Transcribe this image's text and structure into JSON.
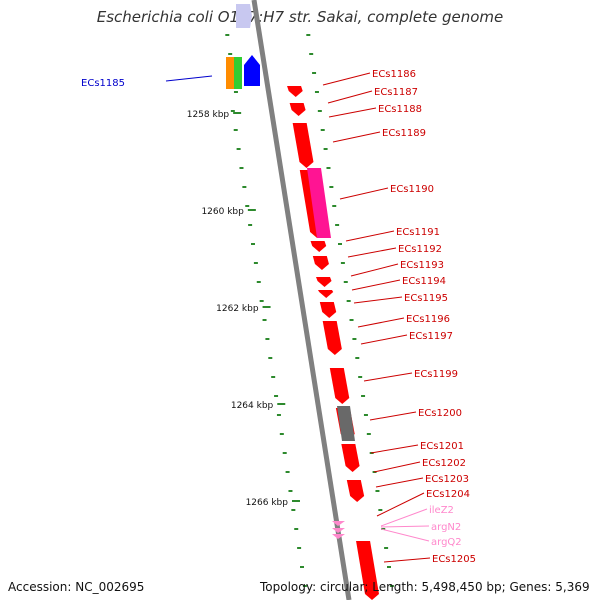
{
  "title": "Escherichia coli O157:H7 str. Sakai, complete genome",
  "footer": {
    "accession": "Accession: NC_002695",
    "summary": "Topology: circular; Length: 5,498,450 bp; Genes: 5,369"
  },
  "ticks": [
    "1258 kbp",
    "1260 kbp",
    "1262 kbp",
    "1264 kbp",
    "1266 kbp"
  ],
  "colors": {
    "backbone": "#808080",
    "cds": "#ff0000",
    "cds_label": "#cc0000",
    "highlight": "#ff1493",
    "gray_feature": "#696969",
    "trna": "#ff88cc",
    "scale_dash": "#2d8a2d",
    "left_label": "#0000cc",
    "orange": "#ff8c00",
    "green": "#32cd32",
    "blue": "#0000ff",
    "lavender": "#c8c8f0"
  },
  "labels": [
    {
      "name": "ECs1185",
      "type": "left",
      "color": "#0000cc"
    },
    {
      "name": "ECs1186",
      "type": "cds"
    },
    {
      "name": "ECs1187",
      "type": "cds"
    },
    {
      "name": "ECs1188",
      "type": "cds"
    },
    {
      "name": "ECs1189",
      "type": "cds"
    },
    {
      "name": "ECs1190",
      "type": "cds"
    },
    {
      "name": "ECs1191",
      "type": "cds"
    },
    {
      "name": "ECs1192",
      "type": "cds"
    },
    {
      "name": "ECs1193",
      "type": "cds"
    },
    {
      "name": "ECs1194",
      "type": "cds"
    },
    {
      "name": "ECs1195",
      "type": "cds"
    },
    {
      "name": "ECs1196",
      "type": "cds"
    },
    {
      "name": "ECs1197",
      "type": "cds"
    },
    {
      "name": "ECs1199",
      "type": "cds"
    },
    {
      "name": "ECs1200",
      "type": "cds"
    },
    {
      "name": "ECs1201",
      "type": "cds"
    },
    {
      "name": "ECs1202",
      "type": "cds"
    },
    {
      "name": "ECs1203",
      "type": "cds"
    },
    {
      "name": "ECs1204",
      "type": "cds"
    },
    {
      "name": "ileZ2",
      "type": "trna"
    },
    {
      "name": "argN2",
      "type": "trna"
    },
    {
      "name": "argQ2",
      "type": "trna"
    },
    {
      "name": "ECs1205",
      "type": "cds"
    }
  ]
}
